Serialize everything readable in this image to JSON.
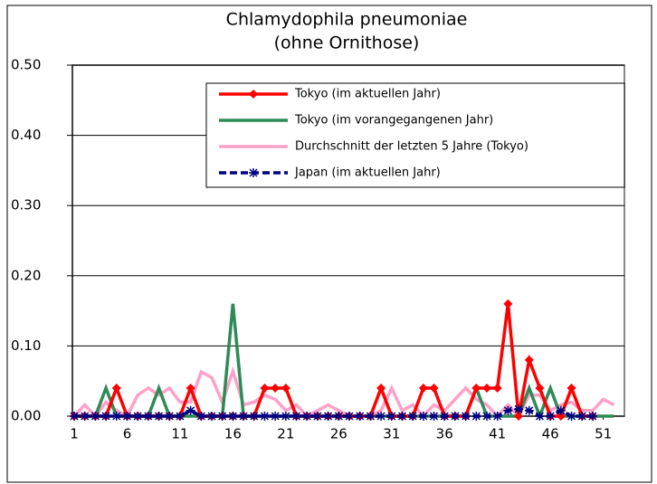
{
  "chart_data": {
    "type": "line",
    "title": [
      "Chlamydophila pneumoniae",
      "(ohne Ornithose)"
    ],
    "x": [
      1,
      2,
      3,
      4,
      5,
      6,
      7,
      8,
      9,
      10,
      11,
      12,
      13,
      14,
      15,
      16,
      17,
      18,
      19,
      20,
      21,
      22,
      23,
      24,
      25,
      26,
      27,
      28,
      29,
      30,
      31,
      32,
      33,
      34,
      35,
      36,
      37,
      38,
      39,
      40,
      41,
      42,
      43,
      44,
      45,
      46,
      47,
      48,
      49,
      50,
      51,
      52
    ],
    "xlim": [
      1,
      53
    ],
    "xticks": [
      1,
      6,
      11,
      16,
      21,
      26,
      31,
      36,
      41,
      46,
      51
    ],
    "ylim": [
      0,
      0.5
    ],
    "yticks": [
      {
        "value": 0,
        "label": "0.00"
      },
      {
        "value": 0.1,
        "label": "0.10"
      },
      {
        "value": 0.2,
        "label": "0.20"
      },
      {
        "value": 0.3,
        "label": "0.30"
      },
      {
        "value": 0.4,
        "label": "0.40"
      },
      {
        "value": 0.5,
        "label": "0.50"
      }
    ],
    "grid": true,
    "legend": "top-right",
    "series": [
      {
        "name": "Tokyo (im aktuellen Jahr)",
        "color": "#ff0000",
        "marker": "diamond",
        "values": [
          0,
          0,
          0,
          0,
          0.04,
          0,
          0,
          0,
          0,
          0,
          0,
          0.04,
          0,
          0,
          0,
          0,
          0,
          0,
          0.04,
          0.04,
          0.04,
          0,
          0,
          0,
          0,
          0,
          0,
          0,
          0,
          0.04,
          0,
          0,
          0,
          0.04,
          0.04,
          0,
          0,
          0,
          0.04,
          0.04,
          0.04,
          0.16,
          0,
          0.08,
          0.04,
          0,
          0,
          0.04,
          0,
          0,
          null,
          null
        ]
      },
      {
        "name": "Tokyo (im vorangegangenen Jahr)",
        "color": "#2e8b57",
        "marker": "none",
        "values": [
          0,
          0,
          0,
          0.04,
          0,
          0,
          0,
          0,
          0.04,
          0,
          0,
          0,
          0,
          0,
          0,
          0.16,
          0,
          0,
          0,
          0,
          0,
          0,
          0,
          0,
          0,
          0,
          0,
          0,
          0,
          0,
          0,
          0,
          0,
          0,
          0,
          0,
          0,
          0,
          0.04,
          0,
          0,
          0,
          0,
          0.04,
          0,
          0.04,
          0,
          0,
          0,
          0,
          0,
          0
        ]
      },
      {
        "name": "Durchschnitt der letzten 5 Jahre (Tokyo)",
        "color": "#ffa0c8",
        "marker": "none",
        "values": [
          0,
          0.016,
          0,
          0.02,
          0.008,
          0,
          0.03,
          0.04,
          0.03,
          0.04,
          0.02,
          0.02,
          0.063,
          0.055,
          0.02,
          0.064,
          0.016,
          0.02,
          0.03,
          0.024,
          0.008,
          0.016,
          0,
          0.008,
          0.016,
          0.008,
          0,
          0,
          0,
          0.008,
          0.04,
          0.008,
          0.016,
          0,
          0.016,
          0.008,
          0.024,
          0.04,
          0.024,
          0.016,
          0,
          0.016,
          0,
          0.03,
          0.03,
          0.008,
          0.016,
          0.02,
          0.008,
          0.008,
          0.024,
          0.016
        ]
      },
      {
        "name": "Japan (im aktuellen Jahr)",
        "color": "#000080",
        "marker": "asterisk",
        "dash": true,
        "values": [
          0,
          0,
          0,
          0,
          0,
          0,
          0,
          0,
          0,
          0,
          0,
          0.008,
          0,
          0,
          0,
          0,
          0,
          0,
          0,
          0,
          0,
          0,
          0,
          0,
          0,
          0,
          0,
          0,
          0,
          0,
          0,
          0,
          0,
          0,
          0,
          0,
          0,
          0,
          0,
          0,
          0,
          0.008,
          0.01,
          0.008,
          0,
          0,
          0.008,
          0,
          0,
          0,
          null,
          null
        ]
      }
    ]
  }
}
